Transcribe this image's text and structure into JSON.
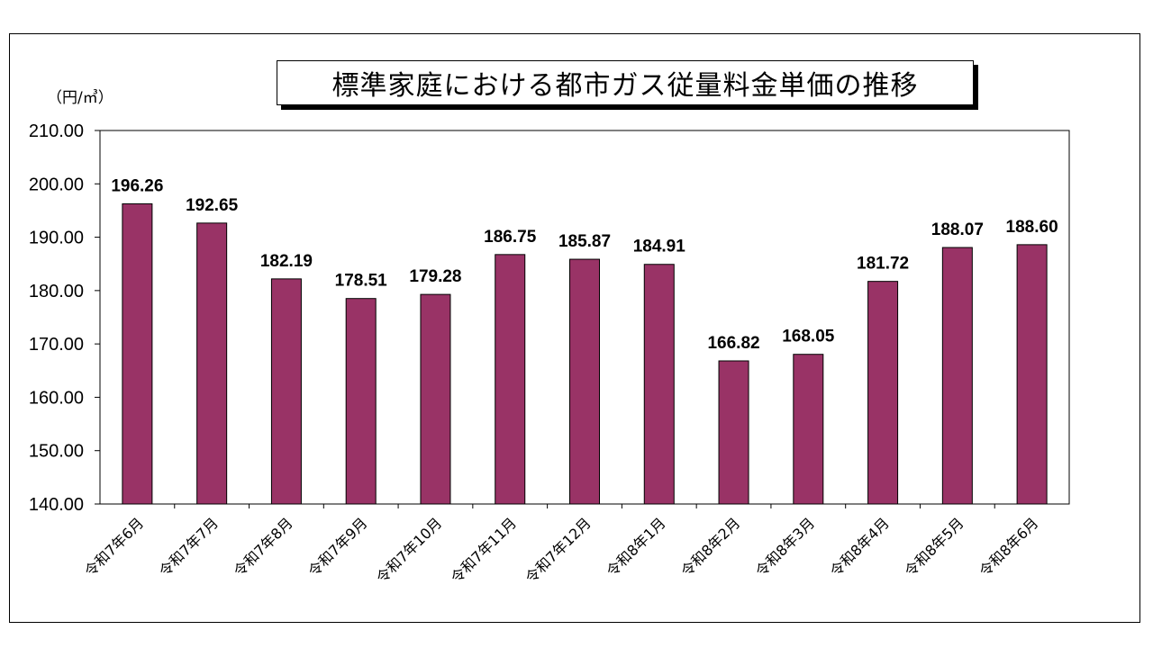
{
  "chart_data": {
    "type": "bar",
    "title": "標準家庭における都市ガス従量料金単価の推移",
    "unit_label": "（円/㎥）",
    "categories": [
      "令和7年6月",
      "令和7年7月",
      "令和7年8月",
      "令和7年9月",
      "令和7年10月",
      "令和7年11月",
      "令和7年12月",
      "令和8年1月",
      "令和8年2月",
      "令和8年3月",
      "令和8年4月",
      "令和8年5月",
      "令和8年6月"
    ],
    "values": [
      196.26,
      192.65,
      182.19,
      178.51,
      179.28,
      186.75,
      185.87,
      184.91,
      166.82,
      168.05,
      181.72,
      188.07,
      188.6
    ],
    "value_labels": [
      "196.26",
      "192.65",
      "182.19",
      "178.51",
      "179.28",
      "186.75",
      "185.87",
      "184.91",
      "166.82",
      "168.05",
      "181.72",
      "188.07",
      "188.60"
    ],
    "ylim": [
      140,
      210
    ],
    "yticks": [
      140,
      150,
      160,
      170,
      180,
      190,
      200,
      210
    ],
    "ytick_labels": [
      "140.00",
      "150.00",
      "160.00",
      "170.00",
      "180.00",
      "190.00",
      "200.00",
      "210.00"
    ],
    "bar_color": "#993366",
    "grid": false,
    "legend": "none"
  }
}
